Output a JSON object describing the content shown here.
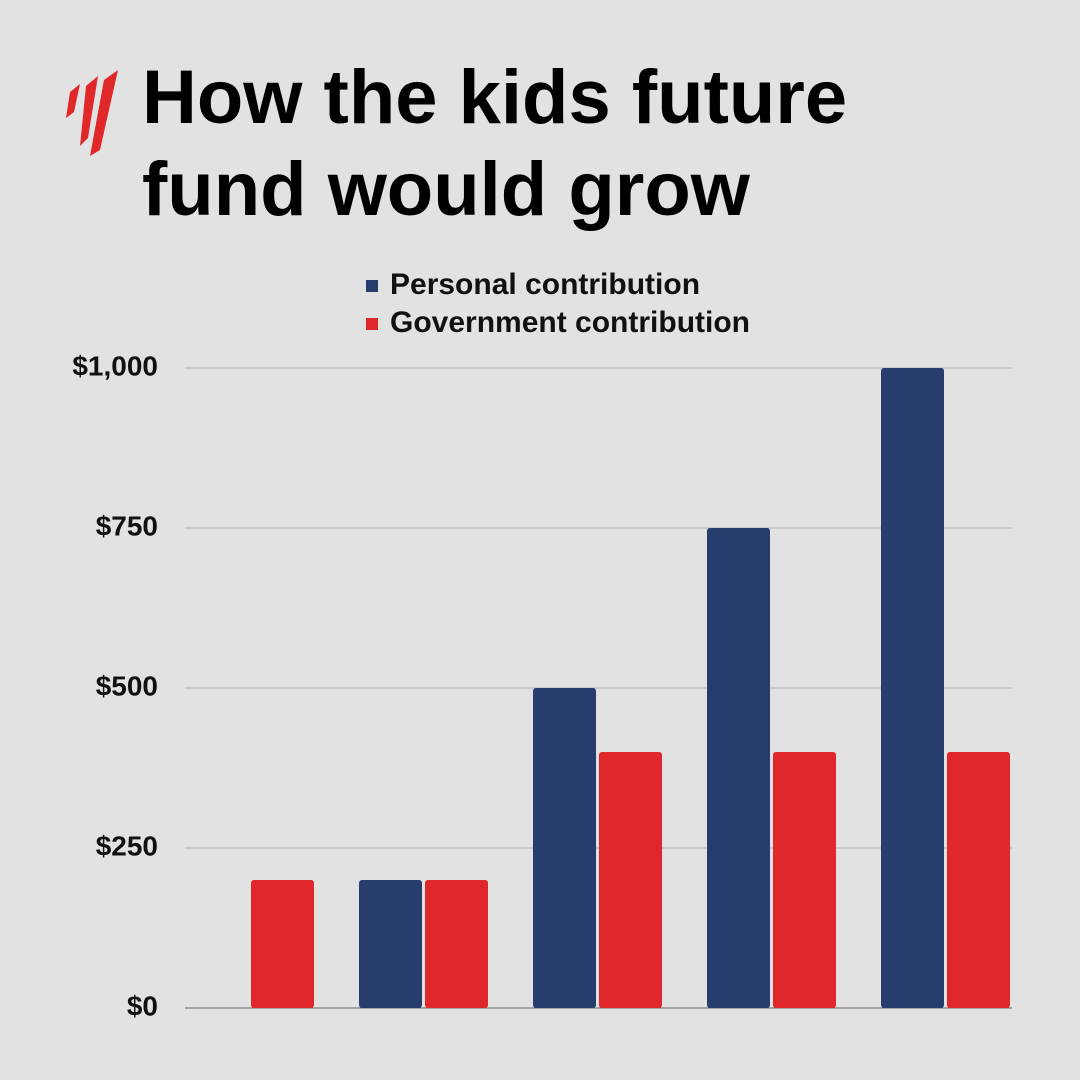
{
  "chart_data": {
    "type": "bar",
    "title": "How the kids future fund would grow",
    "categories": [
      null,
      null,
      null,
      null,
      null
    ],
    "series": [
      {
        "name": "Personal contribution",
        "color": "#263d6e",
        "values": [
          null,
          200,
          500,
          750,
          1000
        ]
      },
      {
        "name": "Government contribution",
        "color": "#e0282b",
        "values": [
          200,
          200,
          400,
          400,
          400
        ]
      }
    ],
    "ylim": [
      0,
      1000
    ],
    "yticks": [
      {
        "value": 0,
        "label": "$0"
      },
      {
        "value": 250,
        "label": "$250"
      },
      {
        "value": 500,
        "label": "$500"
      },
      {
        "value": 750,
        "label": "$750"
      },
      {
        "value": 1000,
        "label": "$1,000"
      }
    ],
    "grid": true
  }
}
